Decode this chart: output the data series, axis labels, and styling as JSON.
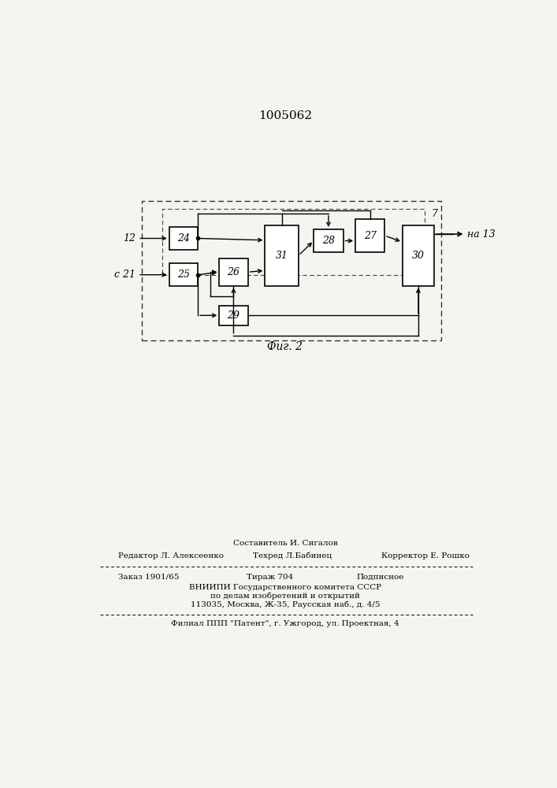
{
  "patent_number": "1005062",
  "fig_label": "Фиг. 2",
  "background_color": "#f5f5f0",
  "footer": {
    "compose": "Составитель И. Сигалов",
    "editor": "Редактор Л. Алексеенко",
    "techred": "Техред Л.Бабинец",
    "corrector": "Корректор Е. Рошко",
    "order": "Заказ 1901/65",
    "tirazh": "Тираж 704",
    "podp": "Подписное",
    "vniizi": "ВНИИПИ Государственного комитета СССР",
    "po_delam": "по делам изобретений и открытий",
    "address": "113035, Москва, Ж-35, Раусская наб., д. 4/5",
    "filial": "Филиал ППП \"Патент\", г. Ужгород, ул. Проектная, 4"
  }
}
